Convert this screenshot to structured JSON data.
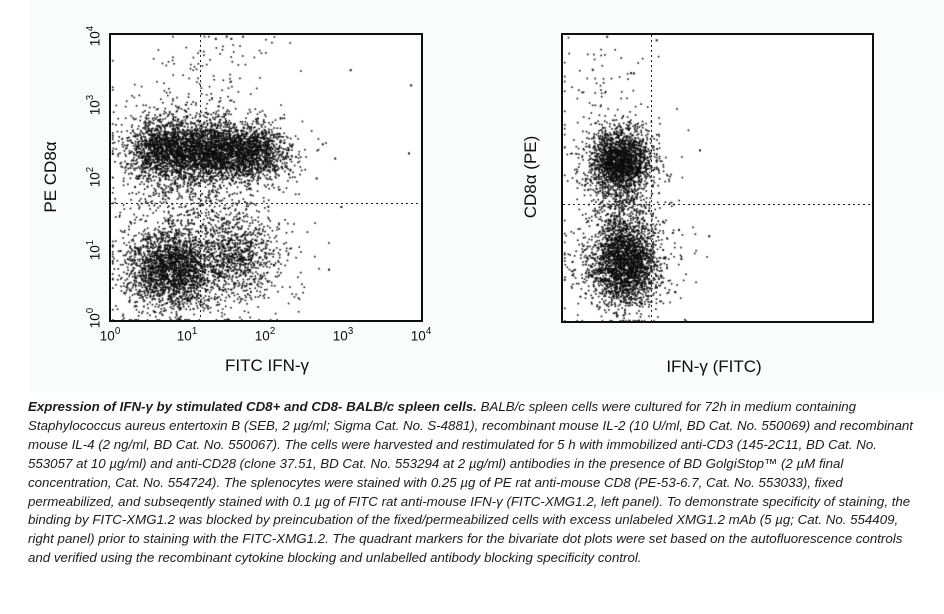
{
  "chart_data": [
    {
      "id": "left-panel",
      "type": "scatter",
      "title": "",
      "xlabel": "FITC IFN-γ",
      "ylabel": "PE CD8α",
      "x_scale": "log10",
      "y_scale": "log10",
      "x_range": [
        1,
        10000
      ],
      "y_range": [
        1,
        10000
      ],
      "tick_base": "10",
      "x_tick_exponents": [
        "0",
        "1",
        "2",
        "3",
        "4"
      ],
      "y_tick_exponents": [
        "4",
        "3",
        "2",
        "1",
        "0"
      ],
      "grid": "off",
      "quadrant": {
        "x_frac": 0.287,
        "y_frac": 0.412,
        "x_value_approx": "~14 (10^1.15) FITC IFN-γ",
        "y_value_approx": "~45 (10^1.65) PE CD8α"
      },
      "populations": "CD8+ band (upper) spans IFN-γ- and IFN-γ+ quadrants; CD8- cluster (lower) mostly IFN-γ-/dim with a moderate IFN-γ+ tail",
      "clusters": [
        {
          "n": 1400,
          "x": 0.17,
          "y": 0.6,
          "sx": 0.06,
          "sy": 0.055
        },
        {
          "n": 1600,
          "x": 0.32,
          "y": 0.595,
          "sx": 0.07,
          "sy": 0.05
        },
        {
          "n": 1100,
          "x": 0.46,
          "y": 0.59,
          "sx": 0.06,
          "sy": 0.05
        },
        {
          "n": 500,
          "x": 0.3,
          "y": 0.6,
          "sx": 0.14,
          "sy": 0.09
        },
        {
          "n": 2000,
          "x": 0.19,
          "y": 0.18,
          "sx": 0.07,
          "sy": 0.07
        },
        {
          "n": 800,
          "x": 0.4,
          "y": 0.24,
          "sx": 0.075,
          "sy": 0.075
        },
        {
          "n": 500,
          "x": 0.28,
          "y": 0.18,
          "sx": 0.13,
          "sy": 0.1
        },
        {
          "n": 350,
          "x": 0.27,
          "y": 0.44,
          "sx": 0.11,
          "sy": 0.07
        },
        {
          "n": 90,
          "x": 0.32,
          "y": 0.8,
          "sx": 0.09,
          "sy": 0.09
        },
        {
          "n": 30,
          "x": 0.33,
          "y": 0.95,
          "sx": 0.1,
          "sy": 0.04
        },
        {
          "n": 60,
          "x": 0.05,
          "y": 0.45,
          "sx": 0.04,
          "sy": 0.25
        }
      ],
      "strays": [
        [
          0.965,
          0.827
        ],
        [
          0.958,
          0.588
        ],
        [
          0.77,
          0.88
        ],
        [
          0.7,
          0.18
        ],
        [
          0.74,
          0.4
        ],
        [
          0.68,
          0.62
        ],
        [
          0.72,
          0.57
        ],
        [
          0.66,
          0.5
        ],
        [
          0.37,
          0.998
        ],
        [
          0.385,
          0.99
        ],
        [
          0.335,
          0.99
        ]
      ]
    },
    {
      "id": "right-panel",
      "type": "scatter",
      "title": "",
      "xlabel": "IFN-γ (FITC)",
      "ylabel": "CD8α (PE)",
      "x_scale": "log10",
      "y_scale": "log10",
      "x_tick_exponents": [],
      "y_tick_exponents": [],
      "grid": "off",
      "quadrant": {
        "x_frac": 0.285,
        "y_frac": 0.41
      },
      "populations": "Blocking control: CD8+ (upper) and CD8- (lower) populations both confined left of the IFN-γ quadrant marker (staining blocked by unlabeled XMG1.2)",
      "clusters": [
        {
          "n": 1900,
          "x": 0.185,
          "y": 0.565,
          "sx": 0.048,
          "sy": 0.055
        },
        {
          "n": 250,
          "x": 0.18,
          "y": 0.56,
          "sx": 0.09,
          "sy": 0.09
        },
        {
          "n": 2400,
          "x": 0.2,
          "y": 0.21,
          "sx": 0.055,
          "sy": 0.075
        },
        {
          "n": 300,
          "x": 0.19,
          "y": 0.2,
          "sx": 0.1,
          "sy": 0.11
        },
        {
          "n": 250,
          "x": 0.19,
          "y": 0.41,
          "sx": 0.06,
          "sy": 0.05
        },
        {
          "n": 55,
          "x": 0.14,
          "y": 0.85,
          "sx": 0.07,
          "sy": 0.08
        }
      ],
      "strays": [
        [
          0.44,
          0.6
        ],
        [
          0.38,
          0.22
        ],
        [
          0.36,
          0.105
        ],
        [
          0.3,
          0.985
        ],
        [
          0.47,
          0.3
        ]
      ]
    }
  ],
  "caption": {
    "title": "Expression of IFN-γ by stimulated CD8+ and CD8- BALB/c spleen cells.",
    "body": "BALB/c spleen cells were cultured for 72h in medium containing Staphylococcus aureus entertoxin B (SEB, 2 µg/ml; Sigma Cat. No. S-4881), recombinant mouse IL-2 (10 U/ml, BD Cat. No. 550069) and recombinant mouse IL-4 (2 ng/ml, BD Cat. No. 550067). The cells were harvested and restimulated for 5 h with immobilized anti-CD3 (145-2C11, BD Cat. No. 553057 at 10 µg/ml) and anti-CD28 (clone 37.51, BD Cat. No. 553294 at 2 µg/ml) antibodies in the presence of BD GolgiStop™ (2 µM final concentration, Cat. No. 554724). The splenocytes were stained with 0.25 µg of PE rat anti-mouse CD8 (PE-53-6.7, Cat. No. 553033), fixed permeabilized, and subseqently stained with 0.1 µg of FITC rat anti-mouse IFN-γ (FITC-XMG1.2, left panel). To demonstrate specificity of staining, the binding by FITC-XMG1.2 was blocked by preincubation of the fixed/permeabilized cells with excess unlabeled XMG1.2 mAb (5 µg; Cat. No. 554409, right panel) prior to staining with the FITC-XMG1.2. The quadrant markers for the bivariate dot plots were set based on the autofluorescence controls and verified using the recombinant cytokine blocking and unlabelled antibody blocking specificity control."
  }
}
